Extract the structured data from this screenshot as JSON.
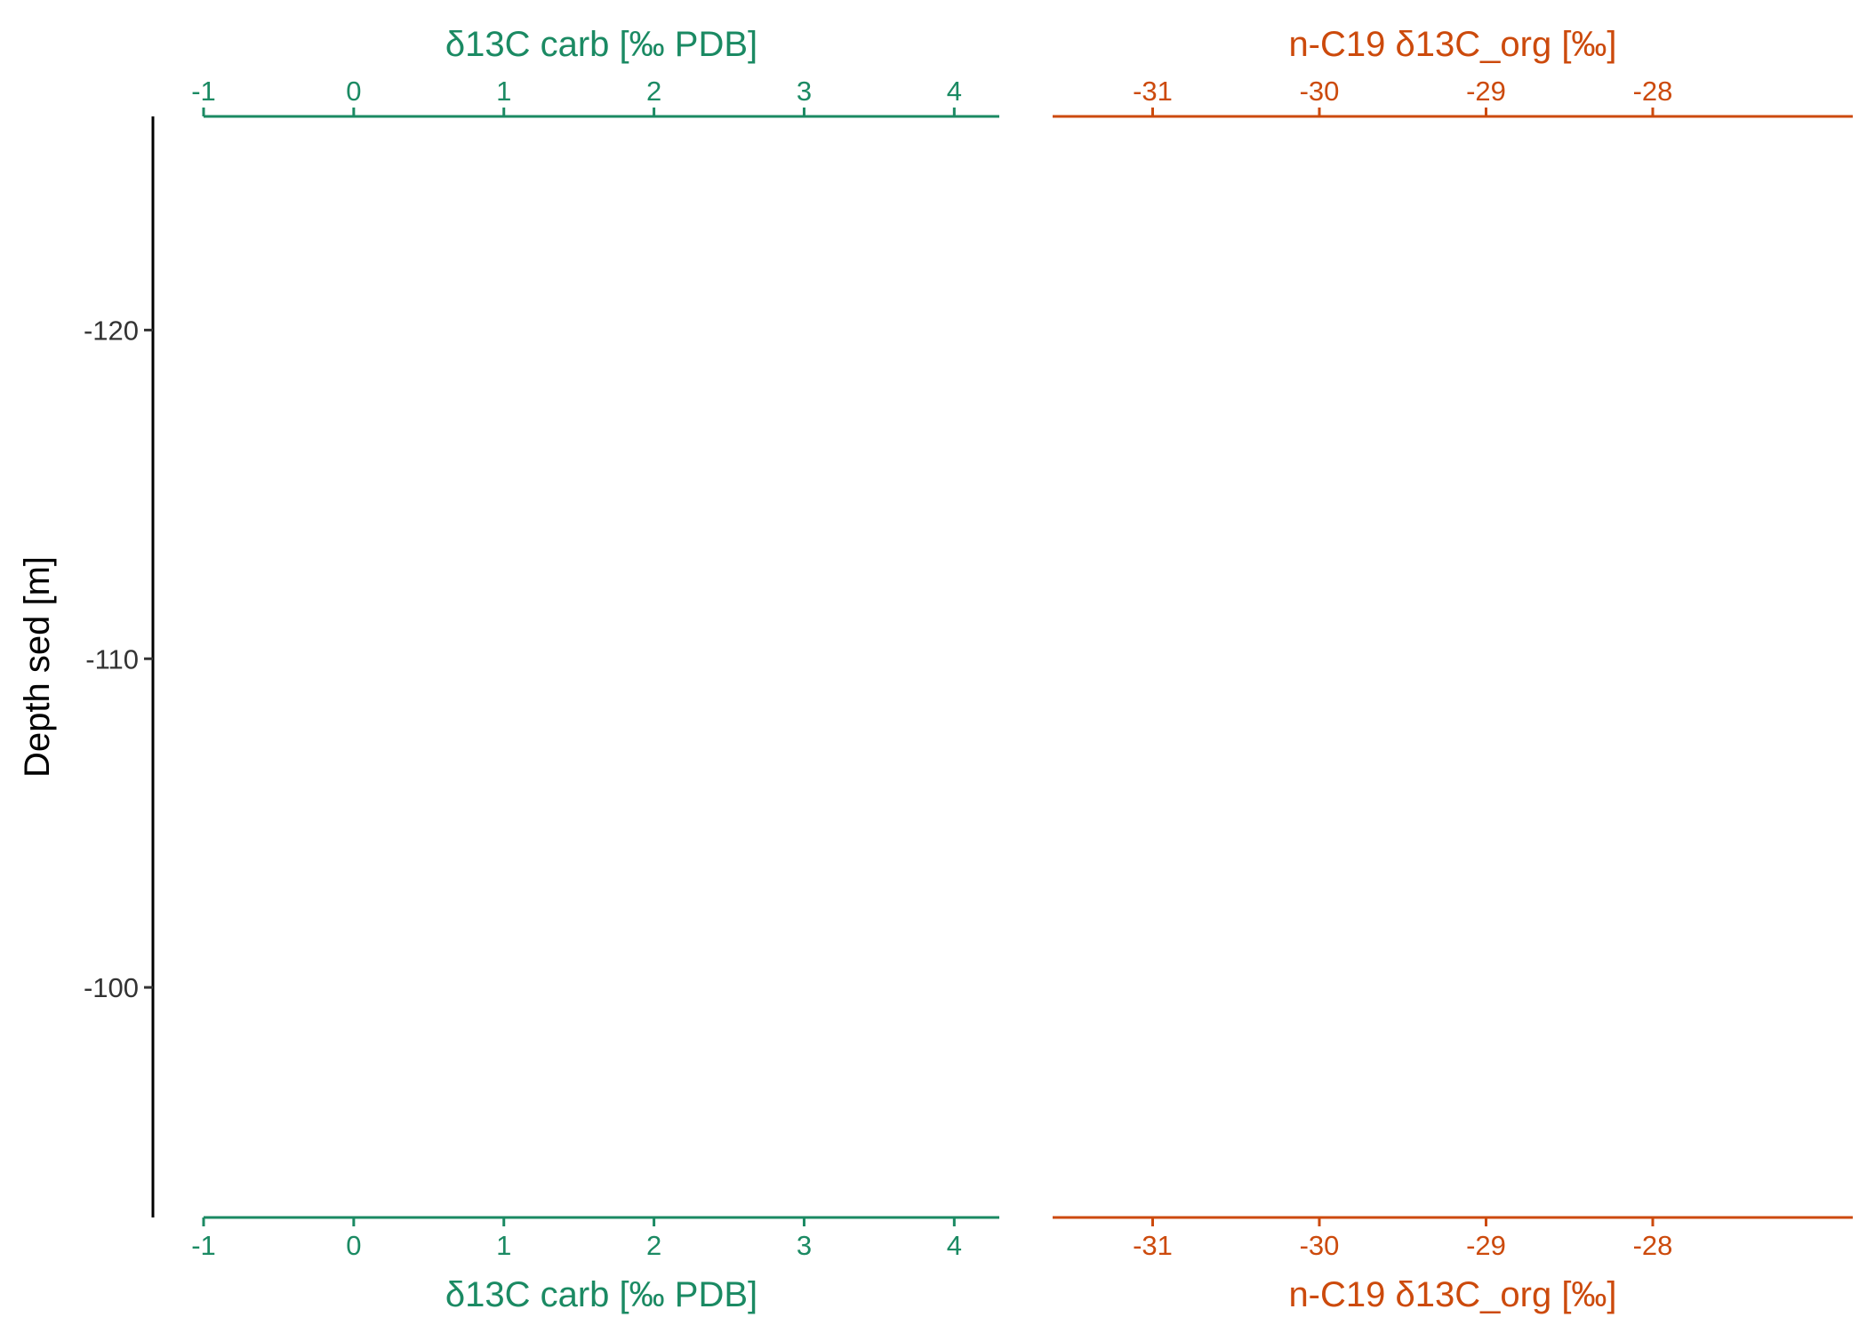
{
  "chart_data": {
    "type": "line",
    "grid": false,
    "y_axis": {
      "label": "Depth sed [m]",
      "ticks": [
        -120,
        -110,
        -100
      ],
      "tick_labels": [
        "-120",
        "-110",
        "-100"
      ],
      "range": [
        -126.5,
        -93
      ]
    },
    "panels": [
      {
        "id": "carb",
        "xlabel": "δ13C carb [‰ PDB]",
        "color": "#1b8a63",
        "ticks": [
          -1,
          0,
          1,
          2,
          3,
          4
        ],
        "tick_labels": [
          "-1",
          "0",
          "1",
          "2",
          "3",
          "4"
        ],
        "range": [
          -1,
          4.3
        ],
        "series": []
      },
      {
        "id": "org",
        "xlabel": "n-C19 δ13C_org [‰]",
        "color": "#cc4a0c",
        "ticks": [
          -31,
          -30,
          -29,
          -28
        ],
        "tick_labels": [
          "-31",
          "-30",
          "-29",
          "-28"
        ],
        "range": [
          -31.6,
          -26.8
        ],
        "series": []
      }
    ]
  }
}
